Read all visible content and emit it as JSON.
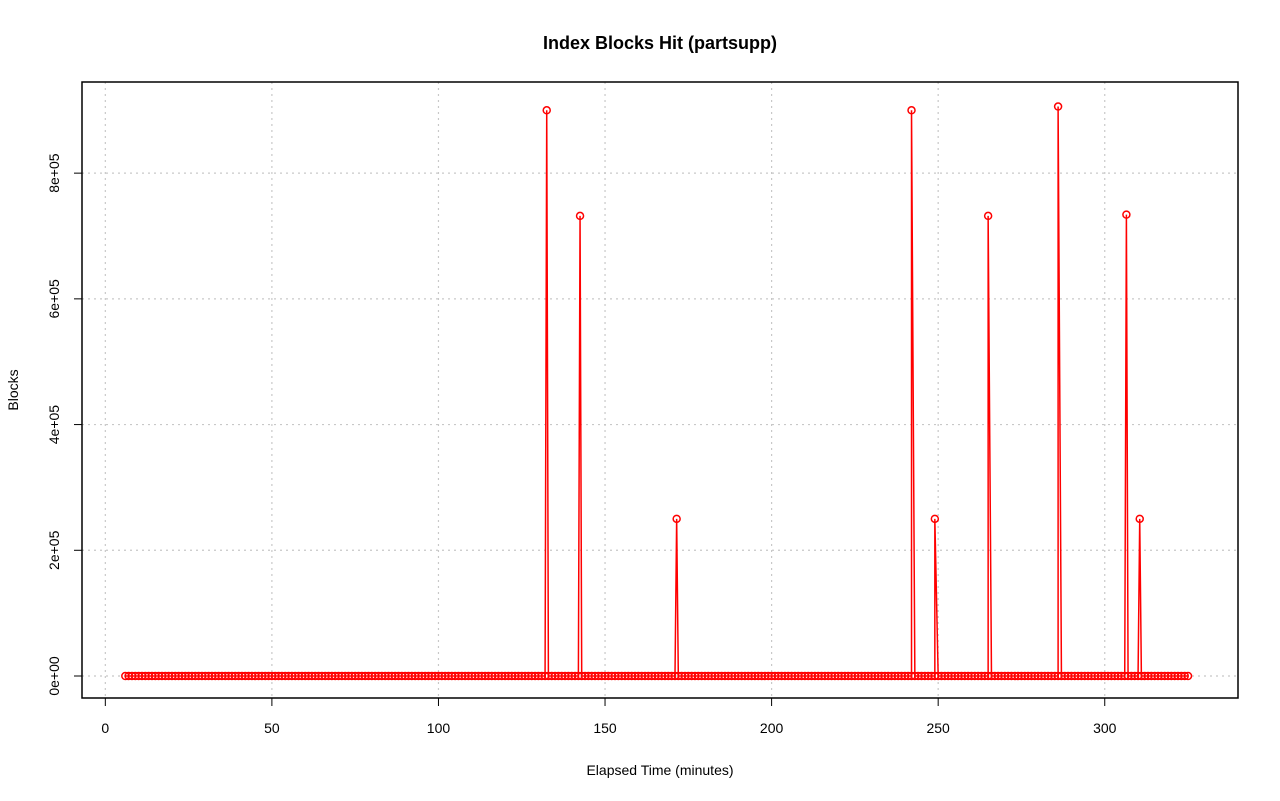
{
  "chart_data": {
    "type": "line",
    "title": "Index Blocks Hit (partsupp)",
    "xlabel": "Elapsed Time (minutes)",
    "ylabel": "Blocks",
    "xlim": [
      -7,
      340
    ],
    "ylim": [
      -35000,
      945000
    ],
    "x_ticks": [
      0,
      50,
      100,
      150,
      200,
      250,
      300
    ],
    "x_tick_labels": [
      "0",
      "50",
      "100",
      "150",
      "200",
      "250",
      "300"
    ],
    "y_ticks": [
      0,
      200000,
      400000,
      600000,
      800000
    ],
    "y_tick_labels": [
      "0e+00",
      "2e+05",
      "4e+05",
      "6e+05",
      "8e+05"
    ],
    "grid": true,
    "line_color": "#ff0000",
    "marker": "open-circle",
    "baseline_range": [
      6,
      325
    ],
    "baseline_step": 1,
    "peaks": [
      {
        "x": 132.5,
        "y": 900000
      },
      {
        "x": 142.5,
        "y": 732000
      },
      {
        "x": 171.5,
        "y": 250000
      },
      {
        "x": 242,
        "y": 900000
      },
      {
        "x": 249,
        "y": 250000
      },
      {
        "x": 265,
        "y": 732000
      },
      {
        "x": 286,
        "y": 906000
      },
      {
        "x": 306.5,
        "y": 734000
      },
      {
        "x": 310.5,
        "y": 250000
      }
    ]
  }
}
